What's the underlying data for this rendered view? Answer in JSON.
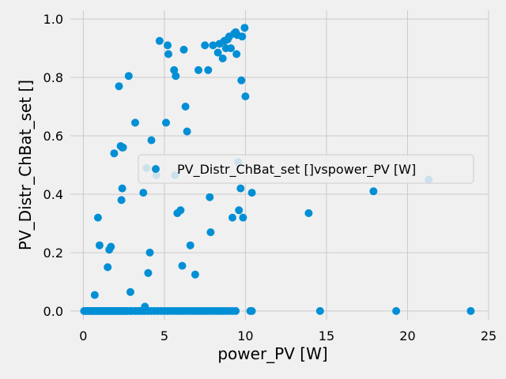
{
  "chart_data": {
    "type": "scatter",
    "title": "",
    "xlabel": "power_PV [W]",
    "ylabel": "PV_Distr_ChBat_set []",
    "xlim": [
      -0.8,
      25
    ],
    "ylim": [
      -0.03,
      1.03
    ],
    "xticks": [
      0,
      5,
      10,
      15,
      20,
      25
    ],
    "yticks": [
      0.0,
      0.2,
      0.4,
      0.6,
      0.8,
      1.0
    ],
    "xtick_labels": [
      "0",
      "5",
      "10",
      "15",
      "20",
      "25"
    ],
    "ytick_labels": [
      "0.0",
      "0.2",
      "0.4",
      "0.6",
      "0.8",
      "1.0"
    ],
    "grid": true,
    "legend_position": "center-right",
    "colors": {
      "background": "#f0f0f0",
      "grid": "#cbcbcb",
      "marker": "#008fd5"
    },
    "series": [
      {
        "name": "PV_Distr_ChBat_set []vspower_PV [W]",
        "x": [
          0.05,
          0.15,
          0.25,
          0.35,
          0.45,
          0.55,
          0.65,
          0.75,
          0.85,
          0.95,
          1.05,
          1.15,
          1.25,
          1.35,
          1.45,
          1.55,
          1.65,
          1.75,
          1.85,
          1.95,
          2.05,
          2.15,
          2.25,
          2.35,
          2.45,
          2.55,
          2.65,
          2.75,
          2.9,
          3.0,
          3.2,
          3.35,
          3.5,
          3.65,
          3.8,
          4.0,
          4.2,
          4.4,
          4.6,
          4.8,
          5.0,
          5.2,
          5.4,
          5.6,
          5.8,
          6.0,
          6.2,
          6.4,
          6.6,
          6.8,
          7.0,
          7.2,
          7.4,
          7.6,
          7.8,
          8.0,
          8.2,
          8.4,
          8.6,
          8.8,
          9.0,
          9.2,
          9.4,
          10.3,
          10.4,
          14.6,
          19.3,
          23.9,
          0.7,
          0.9,
          1.0,
          1.5,
          1.6,
          1.7,
          1.9,
          2.2,
          2.3,
          2.4,
          2.35,
          2.4,
          2.45,
          2.8,
          2.9,
          3.2,
          3.7,
          3.8,
          3.9,
          4.0,
          4.1,
          4.2,
          4.5,
          4.7,
          5.1,
          5.2,
          5.25,
          5.6,
          5.65,
          5.7,
          5.8,
          6.0,
          6.1,
          6.2,
          6.3,
          6.4,
          6.6,
          6.9,
          7.1,
          7.5,
          7.7,
          7.8,
          7.85,
          8.0,
          8.3,
          8.4,
          8.6,
          8.7,
          8.8,
          8.9,
          9.0,
          9.1,
          9.2,
          9.3,
          9.4,
          9.45,
          9.5,
          9.55,
          9.6,
          9.7,
          9.75,
          9.8,
          9.85,
          9.95,
          10.0,
          10.4,
          13.9,
          17.9,
          21.3
        ],
        "y": [
          0,
          0,
          0,
          0,
          0,
          0,
          0,
          0,
          0,
          0,
          0,
          0,
          0,
          0,
          0,
          0,
          0,
          0,
          0,
          0,
          0,
          0,
          0,
          0,
          0,
          0,
          0,
          0,
          0,
          0,
          0,
          0,
          0,
          0,
          0,
          0,
          0,
          0,
          0,
          0,
          0,
          0,
          0,
          0,
          0,
          0,
          0,
          0,
          0,
          0,
          0,
          0,
          0,
          0,
          0,
          0,
          0,
          0,
          0,
          0,
          0,
          0,
          0,
          0,
          0,
          0,
          0,
          0,
          0.055,
          0.32,
          0.225,
          0.15,
          0.21,
          0.22,
          0.54,
          0.77,
          0.565,
          0.42,
          0.38,
          0.56,
          0.56,
          0.805,
          0.065,
          0.645,
          0.405,
          0.015,
          0.49,
          0.13,
          0.2,
          0.585,
          0.465,
          0.925,
          0.645,
          0.91,
          0.88,
          0.825,
          0.465,
          0.805,
          0.335,
          0.345,
          0.155,
          0.895,
          0.7,
          0.615,
          0.225,
          0.125,
          0.825,
          0.91,
          0.825,
          0.39,
          0.27,
          0.91,
          0.885,
          0.915,
          0.865,
          0.925,
          0.9,
          0.93,
          0.94,
          0.9,
          0.32,
          0.95,
          0.955,
          0.88,
          0.945,
          0.51,
          0.345,
          0.42,
          0.79,
          0.94,
          0.32,
          0.97,
          0.735,
          0.405,
          0.335,
          0.41,
          0.45
        ]
      }
    ]
  }
}
